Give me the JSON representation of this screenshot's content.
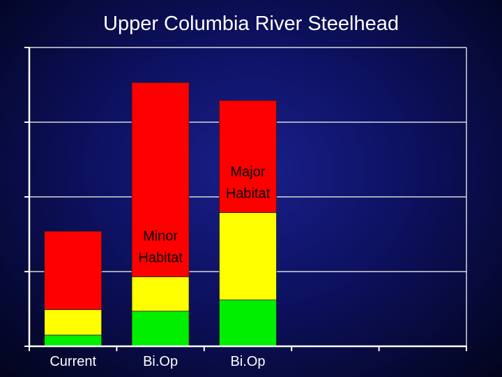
{
  "chart_data": {
    "type": "bar",
    "stacked": true,
    "title": "Upper Columbia River Steelhead",
    "xlabel": "",
    "ylabel": "",
    "ylim": [
      0,
      4
    ],
    "grid": true,
    "categories": [
      "Current",
      "Bi.Op",
      "Bi.Op"
    ],
    "series": [
      {
        "color": "#00ee00",
        "values": [
          0.15,
          0.47,
          0.62
        ]
      },
      {
        "color": "#ffff00",
        "values": [
          0.34,
          0.46,
          1.17
        ]
      },
      {
        "color": "#ff0000",
        "values": [
          1.05,
          2.6,
          1.5
        ]
      }
    ],
    "annotations": [
      {
        "category_index": 1,
        "text": [
          "Minor",
          "Habitat"
        ]
      },
      {
        "category_index": 2,
        "text": [
          "Major",
          "Habitat"
        ]
      }
    ],
    "colors": {
      "grid": "#d8d8d8",
      "axis": "#ffffff",
      "text": "#ffffff",
      "annotation_text": "#000000"
    }
  }
}
